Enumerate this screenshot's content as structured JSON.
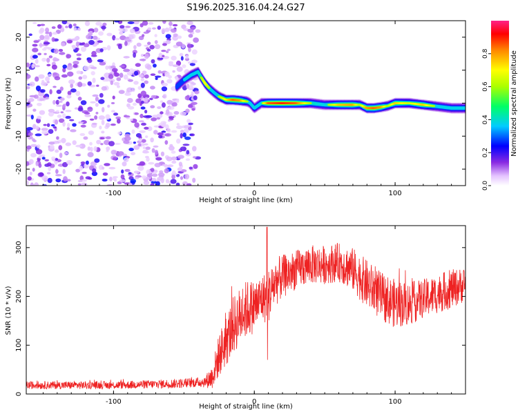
{
  "title": "S196.2025.316.04.24.G27",
  "chart_data": [
    {
      "type": "heatmap",
      "name": "spectrogram",
      "xlabel": "Height of straight line (km)",
      "ylabel": "Frequency (Hz)",
      "xlim": [
        -162,
        150
      ],
      "ylim": [
        -25,
        25
      ],
      "xticks": [
        -100,
        0,
        100
      ],
      "yticks": [
        -20,
        -10,
        0,
        10,
        20
      ],
      "colorbar": {
        "label": "Normalized spectral amplitude",
        "range": [
          0,
          1
        ],
        "ticks": [
          0.0,
          0.2,
          0.4,
          0.6,
          0.8
        ]
      },
      "ridge": {
        "x": [
          -55,
          -50,
          -45,
          -40,
          -38,
          -35,
          -32,
          -28,
          -25,
          -20,
          -15,
          -10,
          -5,
          -3,
          0,
          5,
          10,
          20,
          30,
          40,
          50,
          60,
          70,
          75,
          80,
          85,
          90,
          95,
          100,
          110,
          120,
          130,
          140,
          150
        ],
        "freq": [
          5,
          7,
          8.5,
          9.5,
          8,
          6,
          4.5,
          3,
          2,
          1,
          1,
          0.8,
          0.5,
          0,
          -1.5,
          0,
          0,
          0,
          0,
          0,
          -0.5,
          -0.5,
          -0.5,
          -0.5,
          -1.5,
          -1.5,
          -1.2,
          -0.8,
          0,
          0,
          -0.5,
          -1,
          -1.5,
          -1.5
        ],
        "amp": [
          0.4,
          0.45,
          0.5,
          0.55,
          0.6,
          0.7,
          0.6,
          0.5,
          0.6,
          0.7,
          0.85,
          0.8,
          0.6,
          0.45,
          0.45,
          0.55,
          0.85,
          0.9,
          0.85,
          0.6,
          0.55,
          0.75,
          0.8,
          0.6,
          0.8,
          0.85,
          0.8,
          0.6,
          0.75,
          0.65,
          0.75,
          0.55,
          0.45,
          0.45
        ]
      },
      "noise_region_x": [
        -162,
        -50
      ],
      "noise_amplitude": 0.2
    },
    {
      "type": "line",
      "name": "snr",
      "xlabel": "Height of straight line (km)",
      "ylabel": "SNR (10 * v/v)",
      "xlim": [
        -162,
        150
      ],
      "ylim": [
        0,
        345
      ],
      "xticks": [
        -100,
        0,
        100
      ],
      "yticks": [
        0,
        100,
        200,
        300
      ],
      "color": "#ee2222",
      "envelope": {
        "x": [
          -162,
          -130,
          -100,
          -70,
          -50,
          -40,
          -35,
          -30,
          -25,
          -20,
          -15,
          -10,
          -5,
          0,
          5,
          10,
          15,
          20,
          30,
          40,
          50,
          60,
          70,
          80,
          90,
          100,
          110,
          120,
          130,
          140,
          150
        ],
        "mean": [
          18,
          18,
          18,
          20,
          22,
          24,
          25,
          35,
          80,
          110,
          140,
          160,
          175,
          180,
          195,
          200,
          230,
          240,
          255,
          265,
          265,
          270,
          255,
          225,
          200,
          185,
          185,
          195,
          205,
          215,
          225
        ],
        "spread": [
          8,
          8,
          8,
          9,
          10,
          10,
          12,
          25,
          45,
          55,
          60,
          60,
          60,
          55,
          50,
          55,
          50,
          45,
          40,
          40,
          40,
          40,
          45,
          50,
          50,
          50,
          45,
          40,
          40,
          40,
          35
        ]
      },
      "peak": {
        "x": 9,
        "y": 342
      }
    }
  ]
}
